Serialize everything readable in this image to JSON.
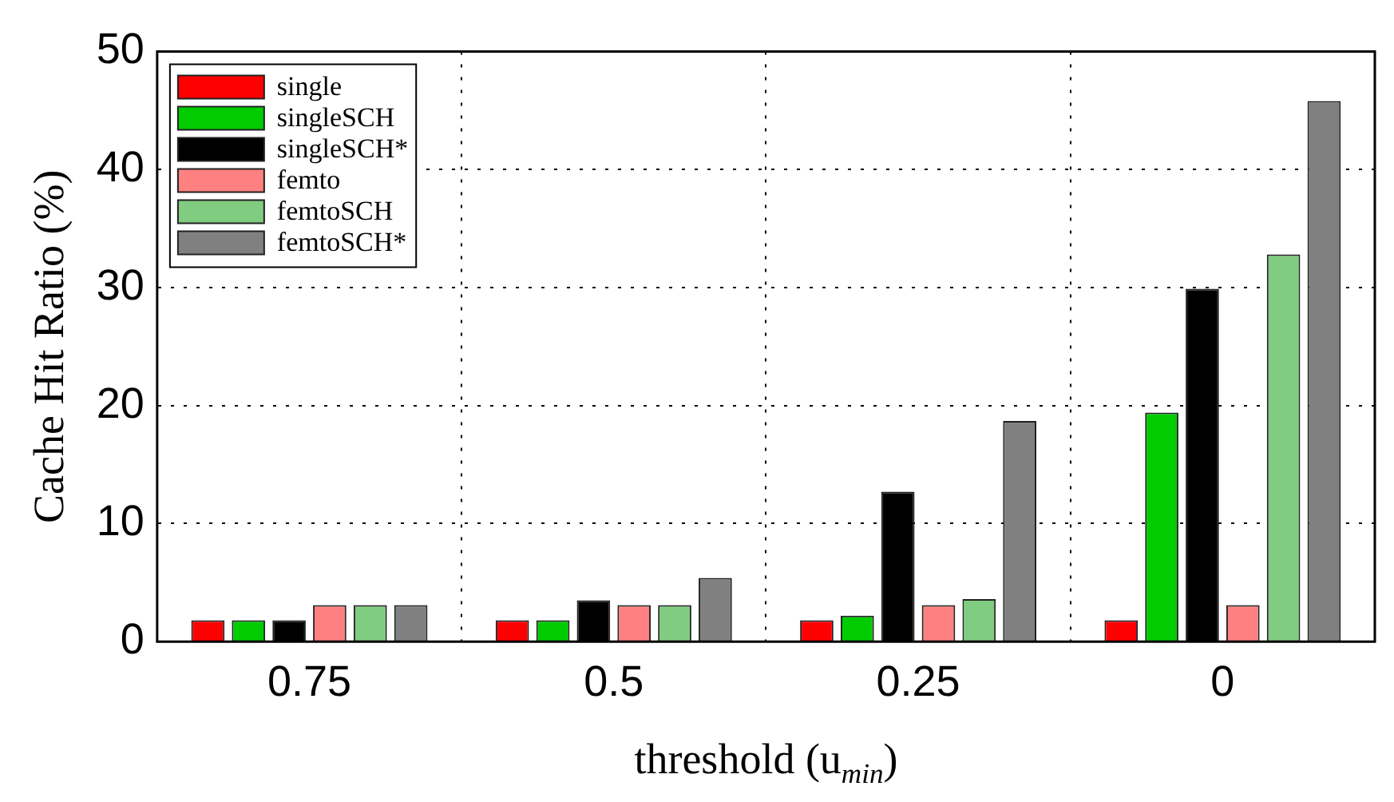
{
  "chart_data": {
    "type": "bar",
    "xlabel": "threshold (u$_{min}$)",
    "ylabel": "Cache Hit Ratio (%)",
    "categories": [
      "0.75",
      "0.5",
      "0.25",
      "0"
    ],
    "series": [
      {
        "name": "single",
        "color": "#ff0000",
        "values": [
          1.8,
          1.8,
          1.8,
          1.8
        ]
      },
      {
        "name": "singleSCH",
        "color": "#00cc00",
        "values": [
          1.8,
          1.8,
          2.2,
          19.4
        ]
      },
      {
        "name": "singleSCH*",
        "color": "#000000",
        "values": [
          1.8,
          3.5,
          12.7,
          29.9
        ]
      },
      {
        "name": "femto",
        "color": "#ff8080",
        "values": [
          3.1,
          3.1,
          3.1,
          3.1
        ]
      },
      {
        "name": "femtoSCH",
        "color": "#80cc80",
        "values": [
          3.1,
          3.1,
          3.6,
          32.8
        ]
      },
      {
        "name": "femtoSCH*",
        "color": "#808080",
        "values": [
          3.1,
          5.4,
          18.7,
          45.8
        ]
      }
    ],
    "ylim": [
      0,
      50
    ],
    "yticks": [
      0,
      10,
      20,
      30,
      40,
      50
    ],
    "grid": true,
    "legend": "top left"
  }
}
